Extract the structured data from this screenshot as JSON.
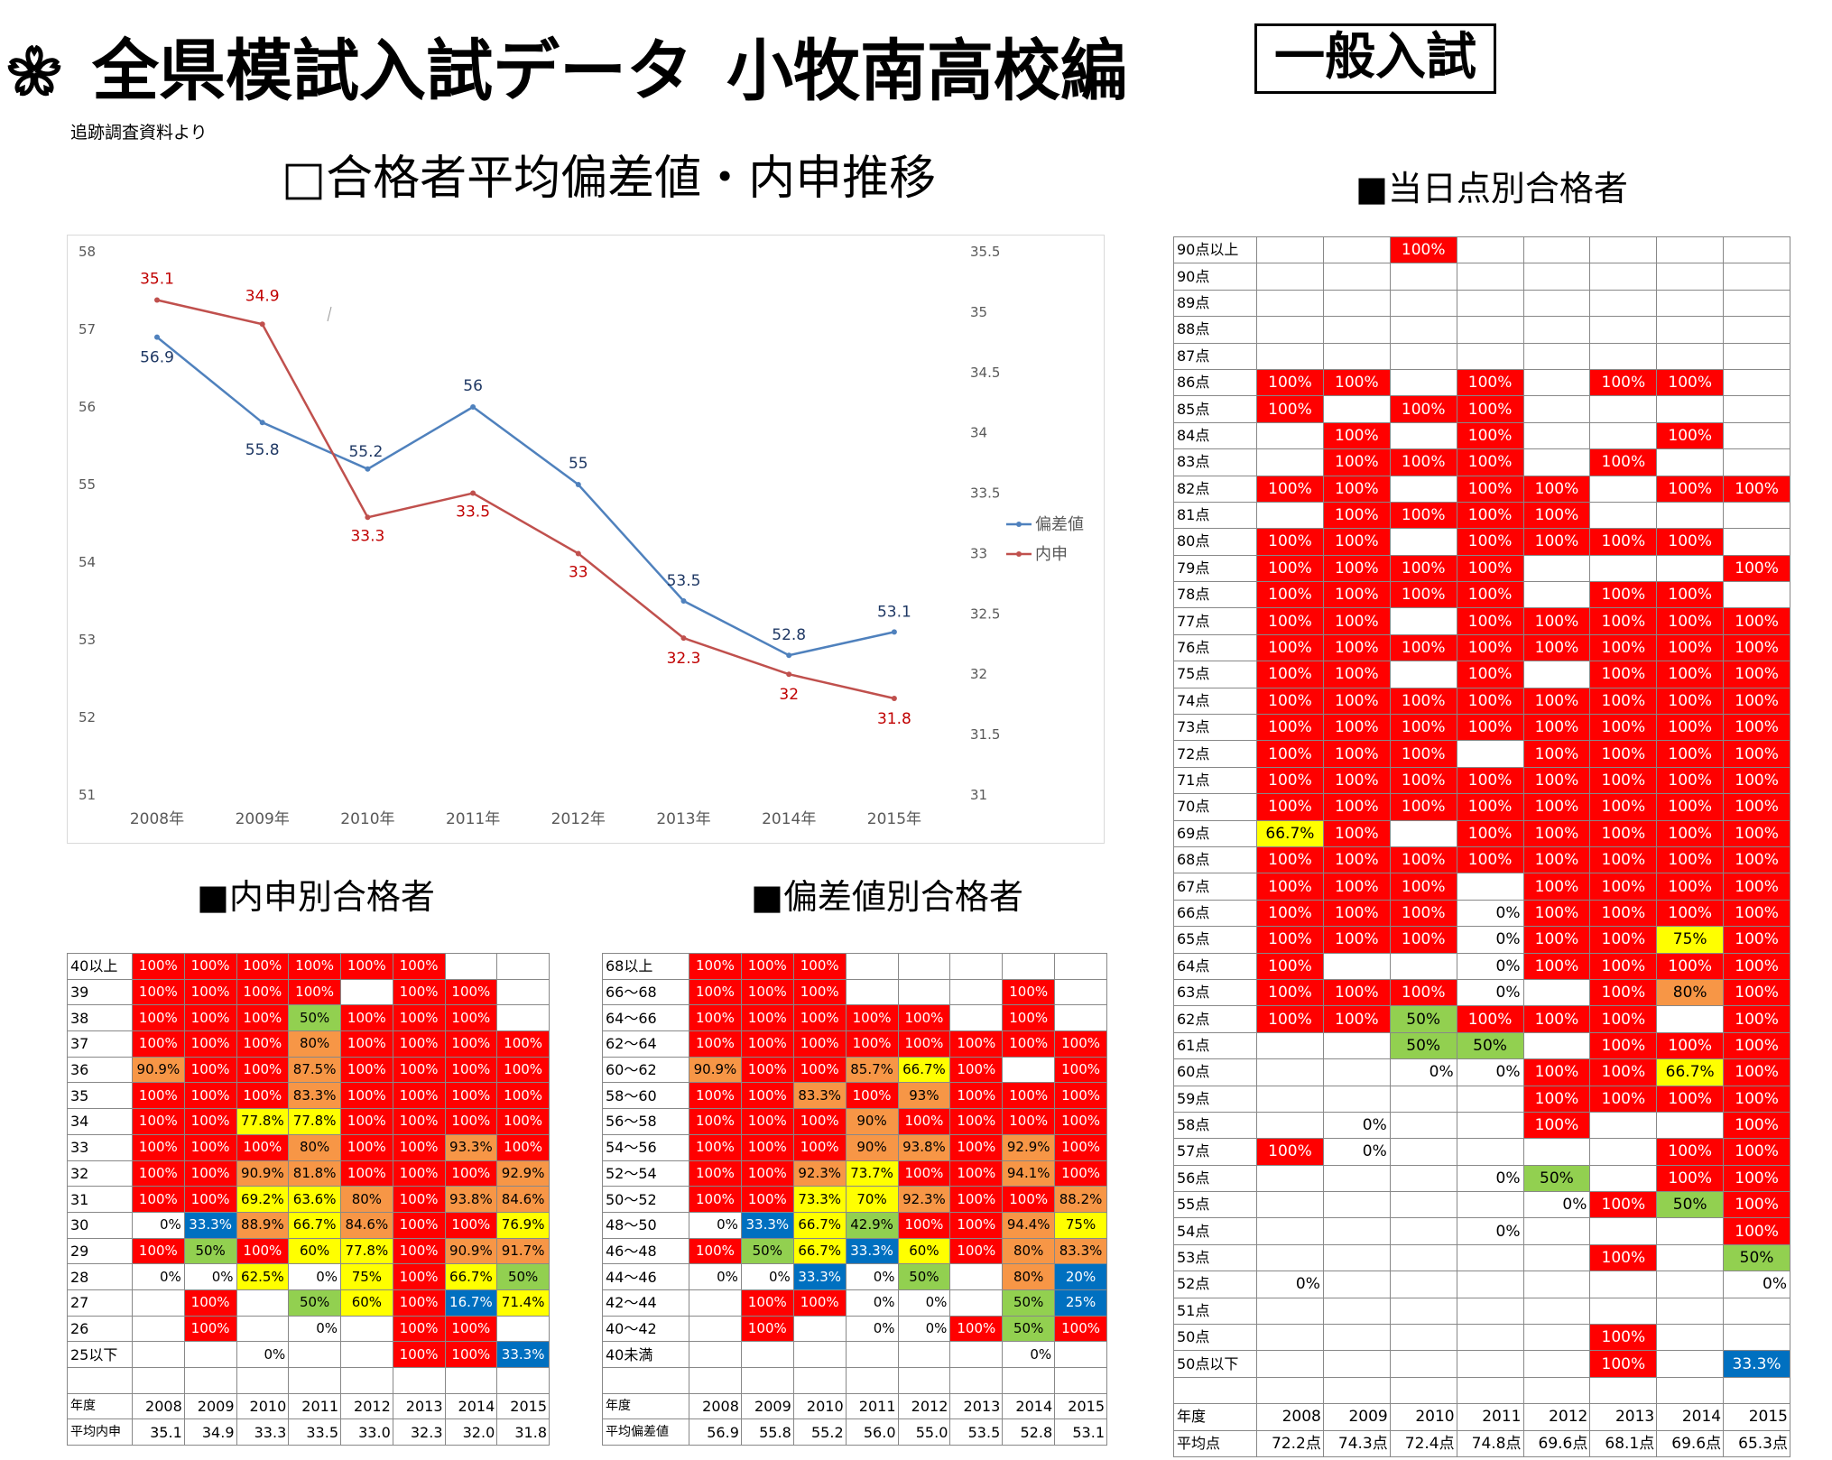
{
  "header": {
    "title": "全県模試入試データ",
    "school": "小牧南高校編",
    "exam_type": "一般入試",
    "source_note": "追跡調査資料より"
  },
  "sections": {
    "chart": "□合格者平均偏差値・内申推移",
    "naishin": "■内申別合格者",
    "hensachi": "■偏差値別合格者",
    "score": "■当日点別合格者"
  },
  "colors": {
    "red": "#ff0000",
    "orange": "#f79646",
    "yellow": "#ffff00",
    "green": "#92d050",
    "blue": "#0070c0",
    "line_hensachi": "#4f81bd",
    "line_naishin": "#c0504d",
    "label_hensachi": "#1f3864",
    "label_naishin": "#c00000",
    "axis_text": "#595959"
  },
  "chart_data": {
    "type": "line",
    "title": "",
    "categories": [
      "2008年",
      "2009年",
      "2010年",
      "2011年",
      "2012年",
      "2013年",
      "2014年",
      "2015年"
    ],
    "series": [
      {
        "name": "偏差値",
        "axis": "left",
        "values": [
          56.9,
          55.8,
          55.2,
          56.0,
          55.0,
          53.5,
          52.8,
          53.1
        ],
        "labels": [
          "56.9",
          "55.8",
          "55.2",
          "56",
          "55",
          "53.5",
          "52.8",
          "53.1"
        ]
      },
      {
        "name": "内申",
        "axis": "right",
        "values": [
          35.1,
          34.9,
          33.3,
          33.5,
          33.0,
          32.3,
          32.0,
          31.8
        ],
        "labels": [
          "35.1",
          "34.9",
          "33.3",
          "33.5",
          "33",
          "32.3",
          "32",
          "31.8"
        ]
      }
    ],
    "y_left": {
      "min": 51,
      "max": 58,
      "ticks": [
        "51",
        "52",
        "53",
        "54",
        "55",
        "56",
        "57",
        "58"
      ]
    },
    "y_right": {
      "min": 31,
      "max": 35.5,
      "ticks": [
        "31",
        "31.5",
        "32",
        "32.5",
        "33",
        "33.5",
        "34",
        "34.5",
        "35",
        "35.5"
      ]
    },
    "legend_position": "right",
    "grid": false
  },
  "naishin_table": {
    "year_label": "年度",
    "avg_label": "平均内申",
    "years": [
      "2008",
      "2009",
      "2010",
      "2011",
      "2012",
      "2013",
      "2014",
      "2015"
    ],
    "avgs": [
      "35.1",
      "34.9",
      "33.3",
      "33.5",
      "33.0",
      "32.3",
      "32.0",
      "31.8"
    ],
    "rows": [
      {
        "label": "40以上",
        "cells": [
          "100%",
          "100%",
          "100%",
          "100%",
          "100%",
          "100%",
          "",
          ""
        ]
      },
      {
        "label": "39",
        "cells": [
          "100%",
          "100%",
          "100%",
          "100%",
          "",
          "100%",
          "100%",
          ""
        ]
      },
      {
        "label": "38",
        "cells": [
          "100%",
          "100%",
          "100%",
          "50%",
          "100%",
          "100%",
          "100%",
          ""
        ]
      },
      {
        "label": "37",
        "cells": [
          "100%",
          "100%",
          "100%",
          "80%",
          "100%",
          "100%",
          "100%",
          "100%"
        ]
      },
      {
        "label": "36",
        "cells": [
          "90.9%",
          "100%",
          "100%",
          "87.5%",
          "100%",
          "100%",
          "100%",
          "100%"
        ]
      },
      {
        "label": "35",
        "cells": [
          "100%",
          "100%",
          "100%",
          "83.3%",
          "100%",
          "100%",
          "100%",
          "100%"
        ]
      },
      {
        "label": "34",
        "cells": [
          "100%",
          "100%",
          "77.8%",
          "77.8%",
          "100%",
          "100%",
          "100%",
          "100%"
        ]
      },
      {
        "label": "33",
        "cells": [
          "100%",
          "100%",
          "100%",
          "80%",
          "100%",
          "100%",
          "93.3%",
          "100%"
        ]
      },
      {
        "label": "32",
        "cells": [
          "100%",
          "100%",
          "90.9%",
          "81.8%",
          "100%",
          "100%",
          "100%",
          "92.9%"
        ]
      },
      {
        "label": "31",
        "cells": [
          "100%",
          "100%",
          "69.2%",
          "63.6%",
          "80%",
          "100%",
          "93.8%",
          "84.6%"
        ]
      },
      {
        "label": "30",
        "cells": [
          "0%",
          "33.3%",
          "88.9%",
          "66.7%",
          "84.6%",
          "100%",
          "100%",
          "76.9%"
        ]
      },
      {
        "label": "29",
        "cells": [
          "100%",
          "50%",
          "100%",
          "60%",
          "77.8%",
          "100%",
          "90.9%",
          "91.7%"
        ]
      },
      {
        "label": "28",
        "cells": [
          "0%",
          "0%",
          "62.5%",
          "0%",
          "75%",
          "100%",
          "66.7%",
          "50%"
        ]
      },
      {
        "label": "27",
        "cells": [
          "",
          "100%",
          "",
          "50%",
          "60%",
          "100%",
          "16.7%",
          "71.4%"
        ]
      },
      {
        "label": "26",
        "cells": [
          "",
          "100%",
          "",
          "0%",
          "",
          "100%",
          "100%",
          ""
        ]
      },
      {
        "label": "25以下",
        "cells": [
          "",
          "",
          "0%",
          "",
          "",
          "100%",
          "100%",
          "33.3%"
        ]
      }
    ]
  },
  "hensachi_table": {
    "year_label": "年度",
    "avg_label": "平均偏差値",
    "years": [
      "2008",
      "2009",
      "2010",
      "2011",
      "2012",
      "2013",
      "2014",
      "2015"
    ],
    "avgs": [
      "56.9",
      "55.8",
      "55.2",
      "56.0",
      "55.0",
      "53.5",
      "52.8",
      "53.1"
    ],
    "rows": [
      {
        "label": "68以上",
        "cells": [
          "100%",
          "100%",
          "100%",
          "",
          "",
          "",
          "",
          ""
        ]
      },
      {
        "label": "66～68",
        "cells": [
          "100%",
          "100%",
          "100%",
          "",
          "",
          "",
          "100%",
          ""
        ]
      },
      {
        "label": "64～66",
        "cells": [
          "100%",
          "100%",
          "100%",
          "100%",
          "100%",
          "",
          "100%",
          ""
        ]
      },
      {
        "label": "62～64",
        "cells": [
          "100%",
          "100%",
          "100%",
          "100%",
          "100%",
          "100%",
          "100%",
          "100%"
        ]
      },
      {
        "label": "60～62",
        "cells": [
          "90.9%",
          "100%",
          "100%",
          "85.7%",
          "66.7%",
          "100%",
          "",
          "100%"
        ]
      },
      {
        "label": "58～60",
        "cells": [
          "100%",
          "100%",
          "83.3%",
          "100%",
          "93%",
          "100%",
          "100%",
          "100%"
        ]
      },
      {
        "label": "56～58",
        "cells": [
          "100%",
          "100%",
          "100%",
          "90%",
          "100%",
          "100%",
          "100%",
          "100%"
        ]
      },
      {
        "label": "54～56",
        "cells": [
          "100%",
          "100%",
          "100%",
          "90%",
          "93.8%",
          "100%",
          "92.9%",
          "100%"
        ]
      },
      {
        "label": "52～54",
        "cells": [
          "100%",
          "100%",
          "92.3%",
          "73.7%",
          "100%",
          "100%",
          "94.1%",
          "100%"
        ]
      },
      {
        "label": "50～52",
        "cells": [
          "100%",
          "100%",
          "73.3%",
          "70%",
          "92.3%",
          "100%",
          "100%",
          "88.2%"
        ]
      },
      {
        "label": "48～50",
        "cells": [
          "0%",
          "33.3%",
          "66.7%",
          "42.9%",
          "100%",
          "100%",
          "94.4%",
          "75%"
        ]
      },
      {
        "label": "46～48",
        "cells": [
          "100%",
          "50%",
          "66.7%",
          "33.3%",
          "60%",
          "100%",
          "80%",
          "83.3%"
        ]
      },
      {
        "label": "44～46",
        "cells": [
          "0%",
          "0%",
          "33.3%",
          "0%",
          "50%",
          "",
          "80%",
          "20%"
        ]
      },
      {
        "label": "42～44",
        "cells": [
          "",
          "100%",
          "100%",
          "0%",
          "0%",
          "",
          "50%",
          "25%"
        ]
      },
      {
        "label": "40～42",
        "cells": [
          "",
          "100%",
          "",
          "0%",
          "0%",
          "100%",
          "50%",
          "100%"
        ]
      },
      {
        "label": "40未満",
        "cells": [
          "",
          "",
          "",
          "",
          "",
          "",
          "0%",
          ""
        ]
      }
    ]
  },
  "score_table": {
    "year_label": "年度",
    "avg_label": "平均点",
    "years": [
      "2008",
      "2009",
      "2010",
      "2011",
      "2012",
      "2013",
      "2014",
      "2015"
    ],
    "avgs": [
      "72.2点",
      "74.3点",
      "72.4点",
      "74.8点",
      "69.6点",
      "68.1点",
      "69.6点",
      "65.3点"
    ],
    "rows": [
      {
        "label": "90点以上",
        "cells": [
          "",
          "",
          "100%",
          "",
          "",
          "",
          "",
          ""
        ]
      },
      {
        "label": "90点",
        "cells": [
          "",
          "",
          "",
          "",
          "",
          "",
          "",
          ""
        ]
      },
      {
        "label": "89点",
        "cells": [
          "",
          "",
          "",
          "",
          "",
          "",
          "",
          ""
        ]
      },
      {
        "label": "88点",
        "cells": [
          "",
          "",
          "",
          "",
          "",
          "",
          "",
          ""
        ]
      },
      {
        "label": "87点",
        "cells": [
          "",
          "",
          "",
          "",
          "",
          "",
          "",
          ""
        ]
      },
      {
        "label": "86点",
        "cells": [
          "100%",
          "100%",
          "",
          "100%",
          "",
          "100%",
          "100%",
          ""
        ]
      },
      {
        "label": "85点",
        "cells": [
          "100%",
          "",
          "100%",
          "100%",
          "",
          "",
          "",
          ""
        ]
      },
      {
        "label": "84点",
        "cells": [
          "",
          "100%",
          "",
          "100%",
          "",
          "",
          "100%",
          ""
        ]
      },
      {
        "label": "83点",
        "cells": [
          "",
          "100%",
          "100%",
          "100%",
          "",
          "100%",
          "",
          ""
        ]
      },
      {
        "label": "82点",
        "cells": [
          "100%",
          "100%",
          "",
          "100%",
          "100%",
          "",
          "100%",
          "100%"
        ]
      },
      {
        "label": "81点",
        "cells": [
          "",
          "100%",
          "100%",
          "100%",
          "100%",
          "",
          "",
          ""
        ]
      },
      {
        "label": "80点",
        "cells": [
          "100%",
          "100%",
          "",
          "100%",
          "100%",
          "100%",
          "100%",
          ""
        ]
      },
      {
        "label": "79点",
        "cells": [
          "100%",
          "100%",
          "100%",
          "100%",
          "",
          "",
          "",
          "100%"
        ]
      },
      {
        "label": "78点",
        "cells": [
          "100%",
          "100%",
          "100%",
          "100%",
          "",
          "100%",
          "100%",
          ""
        ]
      },
      {
        "label": "77点",
        "cells": [
          "100%",
          "100%",
          "",
          "100%",
          "100%",
          "100%",
          "100%",
          "100%"
        ]
      },
      {
        "label": "76点",
        "cells": [
          "100%",
          "100%",
          "100%",
          "100%",
          "100%",
          "100%",
          "100%",
          "100%"
        ]
      },
      {
        "label": "75点",
        "cells": [
          "100%",
          "100%",
          "",
          "100%",
          "",
          "100%",
          "100%",
          "100%"
        ]
      },
      {
        "label": "74点",
        "cells": [
          "100%",
          "100%",
          "100%",
          "100%",
          "100%",
          "100%",
          "100%",
          "100%"
        ]
      },
      {
        "label": "73点",
        "cells": [
          "100%",
          "100%",
          "100%",
          "100%",
          "100%",
          "100%",
          "100%",
          "100%"
        ]
      },
      {
        "label": "72点",
        "cells": [
          "100%",
          "100%",
          "100%",
          "",
          "100%",
          "100%",
          "100%",
          "100%"
        ]
      },
      {
        "label": "71点",
        "cells": [
          "100%",
          "100%",
          "100%",
          "100%",
          "100%",
          "100%",
          "100%",
          "100%"
        ]
      },
      {
        "label": "70点",
        "cells": [
          "100%",
          "100%",
          "100%",
          "100%",
          "100%",
          "100%",
          "100%",
          "100%"
        ]
      },
      {
        "label": "69点",
        "cells": [
          "66.7%",
          "100%",
          "",
          "100%",
          "100%",
          "100%",
          "100%",
          "100%"
        ]
      },
      {
        "label": "68点",
        "cells": [
          "100%",
          "100%",
          "100%",
          "100%",
          "100%",
          "100%",
          "100%",
          "100%"
        ]
      },
      {
        "label": "67点",
        "cells": [
          "100%",
          "100%",
          "100%",
          "",
          "100%",
          "100%",
          "100%",
          "100%"
        ]
      },
      {
        "label": "66点",
        "cells": [
          "100%",
          "100%",
          "100%",
          "0%",
          "100%",
          "100%",
          "100%",
          "100%"
        ]
      },
      {
        "label": "65点",
        "cells": [
          "100%",
          "100%",
          "100%",
          "0%",
          "100%",
          "100%",
          "75%",
          "100%"
        ]
      },
      {
        "label": "64点",
        "cells": [
          "100%",
          "",
          "",
          "0%",
          "100%",
          "100%",
          "100%",
          "100%"
        ]
      },
      {
        "label": "63点",
        "cells": [
          "100%",
          "100%",
          "100%",
          "0%",
          "",
          "100%",
          "80%",
          "100%"
        ]
      },
      {
        "label": "62点",
        "cells": [
          "100%",
          "100%",
          "50%",
          "100%",
          "100%",
          "100%",
          "",
          "100%"
        ]
      },
      {
        "label": "61点",
        "cells": [
          "",
          "",
          "50%",
          "50%",
          "",
          "100%",
          "100%",
          "100%"
        ]
      },
      {
        "label": "60点",
        "cells": [
          "",
          "",
          "0%",
          "0%",
          "100%",
          "100%",
          "66.7%",
          "100%"
        ]
      },
      {
        "label": "59点",
        "cells": [
          "",
          "",
          "",
          "",
          "100%",
          "100%",
          "100%",
          "100%"
        ]
      },
      {
        "label": "58点",
        "cells": [
          "",
          "0%",
          "",
          "",
          "100%",
          "",
          "",
          "100%"
        ]
      },
      {
        "label": "57点",
        "cells": [
          "100%",
          "0%",
          "",
          "",
          "",
          "",
          "100%",
          "100%"
        ]
      },
      {
        "label": "56点",
        "cells": [
          "",
          "",
          "",
          "0%",
          "50%",
          "",
          "100%",
          "100%"
        ]
      },
      {
        "label": "55点",
        "cells": [
          "",
          "",
          "",
          "",
          "0%",
          "100%",
          "50%",
          "100%"
        ]
      },
      {
        "label": "54点",
        "cells": [
          "",
          "",
          "",
          "0%",
          "",
          "",
          "",
          "100%"
        ]
      },
      {
        "label": "53点",
        "cells": [
          "",
          "",
          "",
          "",
          "",
          "100%",
          "",
          "50%"
        ]
      },
      {
        "label": "52点",
        "cells": [
          "0%",
          "",
          "",
          "",
          "",
          "",
          "",
          "0%"
        ]
      },
      {
        "label": "51点",
        "cells": [
          "",
          "",
          "",
          "",
          "",
          "",
          "",
          ""
        ]
      },
      {
        "label": "50点",
        "cells": [
          "",
          "",
          "",
          "",
          "",
          "100%",
          "",
          ""
        ]
      },
      {
        "label": "50点以下",
        "cells": [
          "",
          "",
          "",
          "",
          "",
          "100%",
          "",
          "33.3%"
        ]
      }
    ]
  }
}
